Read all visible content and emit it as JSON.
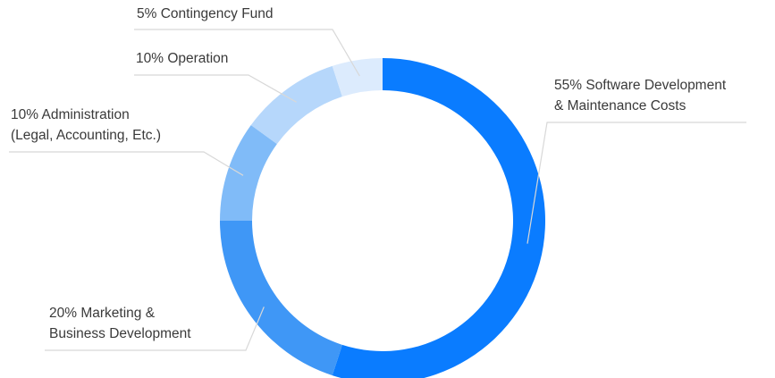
{
  "chart_data": {
    "type": "donut",
    "categories": [
      [
        "Software Development",
        "& Maintenance Costs"
      ],
      [
        "Marketing &",
        "Business Development"
      ],
      [
        "Administration",
        "(Legal, Accounting, Etc.)"
      ],
      [
        "Operation"
      ],
      [
        "Contingency Fund"
      ]
    ],
    "values": [
      55,
      20,
      10,
      10,
      5
    ],
    "value_labels": [
      "55%",
      "20%",
      "10%",
      "10%",
      "5%"
    ],
    "colors": [
      "#0a7cff",
      "#3f97f6",
      "#80bbf8",
      "#b6d7fb",
      "#dcebfd"
    ]
  }
}
